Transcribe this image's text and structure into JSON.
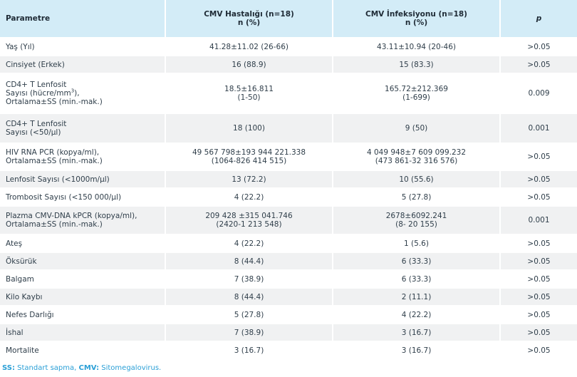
{
  "headers": {
    "param": "Parametre",
    "col1_line1": "CMV Hastalığı (n=18)",
    "col1_line2": "n (%)",
    "col2_line1": "CMV İnfeksiyonu (n=18)",
    "col2_line2": "n (%)",
    "p": "p"
  },
  "rows": [
    {
      "p1": "Yaş (Yıl)",
      "a1": "41.28±11.02 (26-66)",
      "b1": "43.11±10.94 (20-46)",
      "p": ">0.05"
    },
    {
      "p1": "Cinsiyet (Erkek)",
      "a1": "16 (88.9)",
      "b1": "15 (83.3)",
      "p": ">0.05"
    },
    {
      "p1": "CD4+ T Lenfosit",
      "p2a": "Sayısı (hücre/mm",
      "p2sup": "3",
      "p2b": "),",
      "p3": "Ortalama±SS (min.-mak.)",
      "a1": "18.5±16.811",
      "a2": "(1-50)",
      "b1": "165.72±212.369",
      "b2": "(1-699)",
      "p": "0.009"
    },
    {
      "p1": "CD4+ T Lenfosit",
      "p2": "Sayısı (<50/µl)",
      "a1": "18 (100)",
      "b1": "9 (50)",
      "p": "0.001"
    },
    {
      "p1": "HIV RNA PCR  (kopya/ml),",
      "p2": "Ortalama±SS (min.-mak.)",
      "a1": "49 567 798±193 944 221.338",
      "a2": "(1064-826 414 515)",
      "b1": "4 049 948±7 609 099.232",
      "b2": "(473 861-32 316 576)",
      "p": ">0.05"
    },
    {
      "p1": "Lenfosit Sayısı (<1000m/µl)",
      "a1": "13 (72.2)",
      "b1": "10 (55.6)",
      "p": ">0.05"
    },
    {
      "p1": "Trombosit Sayısı (<150 000/µl)",
      "a1": "4 (22.2)",
      "b1": "5 (27.8)",
      "p": ">0.05"
    },
    {
      "p1": "Plazma CMV-DNA kPCR (kopya/ml),",
      "p2": "Ortalama±SS (min.-mak.)",
      "a1": "209 428 ±315 041.746",
      "a2": "(2420-1 213 548)",
      "b1": "2678±6092.241",
      "b2": "(8- 20 155)",
      "p": "0.001"
    },
    {
      "p1": "Ateş",
      "a1": "4 (22.2)",
      "b1": "1 (5.6)",
      "p": ">0.05"
    },
    {
      "p1": "Öksürük",
      "a1": "8 (44.4)",
      "b1": "6 (33.3)",
      "p": ">0.05"
    },
    {
      "p1": "Balgam",
      "a1": "7 (38.9)",
      "b1": "6 (33.3)",
      "p": ">0.05"
    },
    {
      "p1": "Kilo Kaybı",
      "a1": "8 (44.4)",
      "b1": "2 (11.1)",
      "p": ">0.05"
    },
    {
      "p1": "Nefes Darlığı",
      "a1": "5 (27.8)",
      "b1": "4 (22.2)",
      "p": ">0.05"
    },
    {
      "p1": "İshal",
      "a1": "7 (38.9)",
      "b1": "3 (16.7)",
      "p": ">0.05"
    },
    {
      "p1": "Mortalite",
      "a1": "3 (16.7)",
      "b1": "3 (16.7)",
      "p": ">0.05"
    }
  ],
  "footnote": {
    "ss_label": "SS:",
    "ss_text": " Standart sapma, ",
    "cmv_label": "CMV:",
    "cmv_text": " Sitomegalovirus."
  }
}
